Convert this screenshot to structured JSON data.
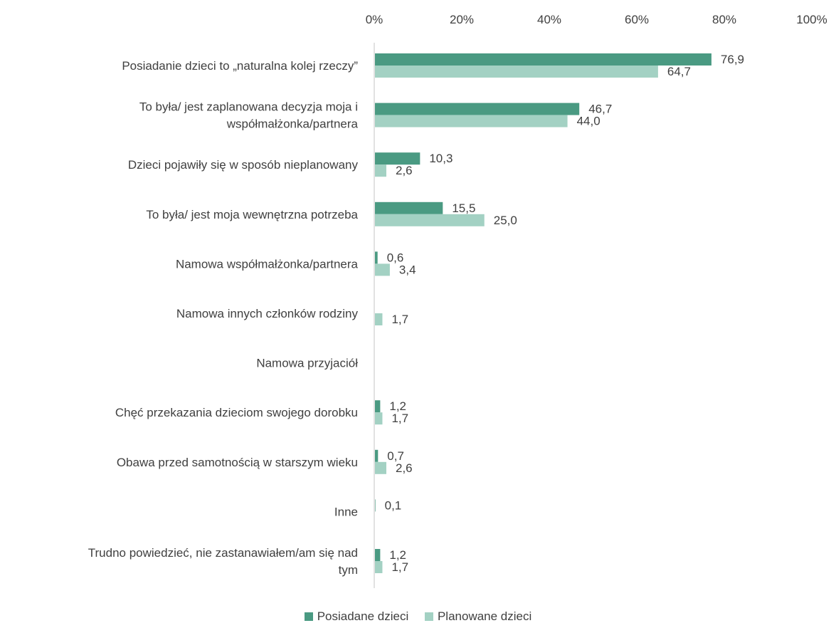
{
  "chart_data": {
    "type": "bar",
    "orientation": "horizontal",
    "xlim": [
      0,
      100
    ],
    "x_ticks": [
      "0%",
      "20%",
      "40%",
      "60%",
      "80%",
      "100%"
    ],
    "x_tick_values": [
      0,
      20,
      40,
      60,
      80,
      100
    ],
    "categories": [
      [
        "Posiadanie dzieci to „naturalna kolej rzeczy”"
      ],
      [
        "To była/ jest zaplanowana decyzja moja i",
        "współmałżonka/partnera"
      ],
      [
        "Dzieci pojawiły się w sposób nieplanowany"
      ],
      [
        "To była/ jest moja wewnętrzna potrzeba"
      ],
      [
        "Namowa współmałżonka/partnera"
      ],
      [
        "Namowa innych członków rodziny"
      ],
      [
        "Namowa przyjaciół"
      ],
      [
        "Chęć przekazania dzieciom swojego dorobku"
      ],
      [
        "Obawa przed samotnością w starszym wieku"
      ],
      [
        "Inne"
      ],
      [
        "Trudno powiedzieć, nie zastanawiałem/am się nad",
        "tym"
      ]
    ],
    "series": [
      {
        "name": "Posiadane dzieci",
        "color": "#4a9a82",
        "values": [
          76.9,
          46.7,
          10.3,
          15.5,
          0.6,
          null,
          null,
          1.2,
          0.7,
          0.1,
          1.2
        ],
        "labels": [
          "76,9",
          "46,7",
          "10,3",
          "15,5",
          "0,6",
          "",
          "",
          "1,2",
          "0,7",
          "0,1",
          "1,2"
        ]
      },
      {
        "name": "Planowane dzieci",
        "color": "#a3d1c3",
        "values": [
          64.7,
          44.0,
          2.6,
          25.0,
          3.4,
          1.7,
          null,
          1.7,
          2.6,
          null,
          1.7
        ],
        "labels": [
          "64,7",
          "44,0",
          "2,6",
          "25,0",
          "3,4",
          "1,7",
          "",
          "1,7",
          "2,6",
          "",
          "1,7"
        ]
      }
    ],
    "legend_position": "bottom",
    "grid": false
  }
}
